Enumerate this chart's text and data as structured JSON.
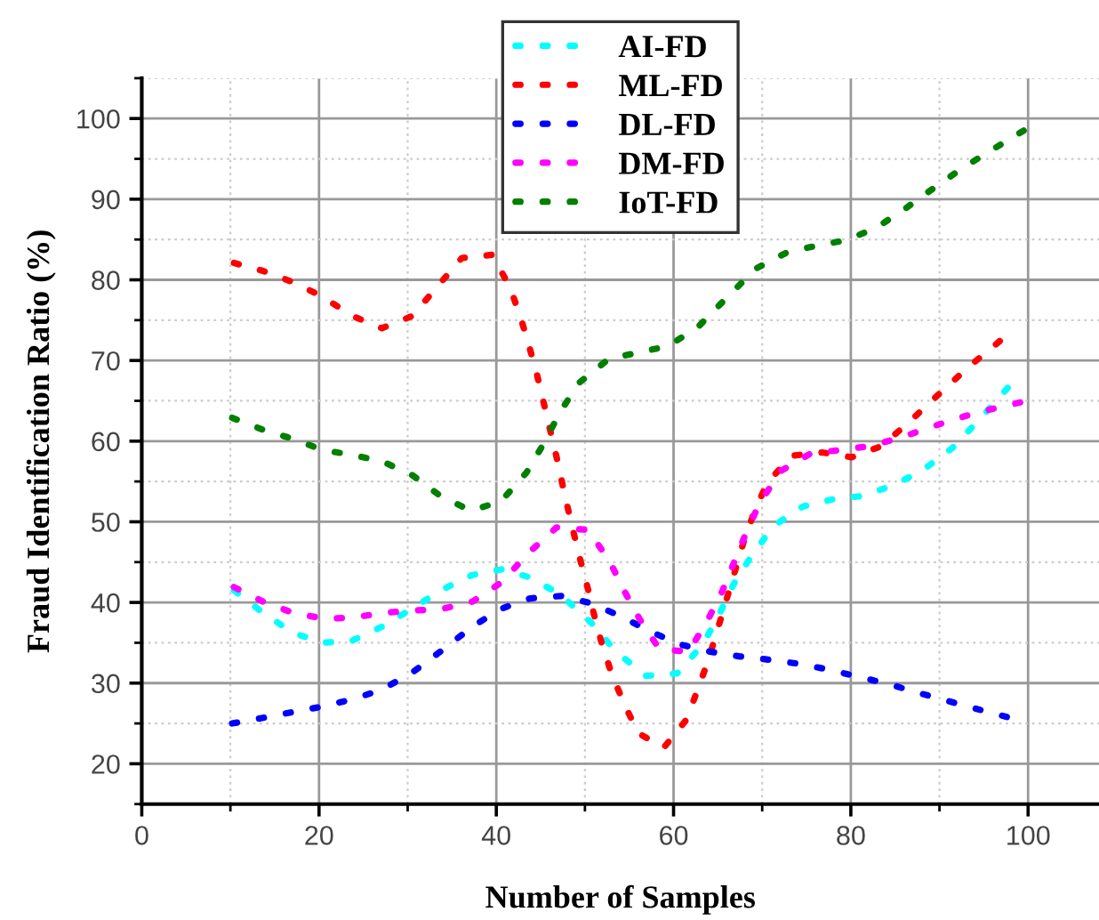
{
  "chart_data": {
    "type": "line",
    "xlabel": "Number of Samples",
    "ylabel": "Fraud Identification Ratio (%)",
    "xlim": [
      0,
      108
    ],
    "xticks": [
      0,
      20,
      40,
      60,
      80,
      100
    ],
    "ylim": [
      15,
      105
    ],
    "yticks": [
      20,
      30,
      40,
      50,
      60,
      70,
      80,
      90,
      100
    ],
    "grid": true,
    "legend": "top",
    "line_style": "dotted",
    "marker": "none",
    "tick_labels": "xy",
    "series": [
      {
        "name": "AI-FD",
        "color": "#00ffff",
        "x": [
          10.4,
          13.7,
          17.1,
          20.5,
          23.8,
          27.1,
          30.6,
          33.9,
          37.3,
          40.6,
          43.8,
          47.2,
          50.7,
          53.5,
          56.9,
          60.4,
          63.3,
          65.1,
          66.8,
          68.8,
          71.3,
          74.6,
          78.0,
          81.3,
          84.7,
          88.0,
          91.5,
          94.7,
          97.7
        ],
        "values": [
          41.5,
          38.7,
          36.2,
          35.0,
          35.3,
          37.0,
          39.3,
          41.6,
          43.4,
          44.1,
          43.1,
          41.0,
          37.5,
          33.9,
          30.9,
          31.2,
          34.8,
          38.4,
          42.3,
          45.8,
          49.5,
          51.9,
          52.8,
          53.2,
          54.5,
          56.3,
          59.2,
          62.9,
          66.6
        ]
      },
      {
        "name": "ML-FD",
        "color": "#ff0000",
        "x": [
          10.4,
          13.7,
          17.1,
          20.4,
          23.8,
          27.1,
          30.5,
          33.3,
          36.1,
          39.5,
          41.5,
          42.7,
          43.7,
          44.6,
          45.4,
          46.2,
          47.0,
          47.7,
          48.5,
          49.3,
          50.2,
          51.0,
          51.9,
          53.0,
          54.4,
          56.0,
          58.9,
          61.4,
          62.7,
          63.9,
          64.9,
          65.9,
          66.9,
          67.9,
          69.1,
          70.6,
          73.4,
          76.8,
          80.1,
          83.5,
          86.8,
          90.2,
          93.5,
          96.8
        ],
        "values": [
          82.1,
          81.1,
          79.7,
          77.9,
          75.5,
          74.0,
          75.5,
          79.1,
          82.7,
          83.1,
          79.2,
          75.5,
          71.8,
          68.2,
          64.5,
          60.8,
          57.1,
          53.4,
          49.7,
          46.0,
          42.3,
          38.6,
          34.9,
          31.2,
          27.5,
          23.8,
          22.0,
          25.4,
          29.1,
          32.8,
          36.4,
          40.1,
          43.8,
          47.5,
          51.2,
          54.9,
          58.2,
          58.6,
          58.0,
          59.4,
          62.6,
          66.1,
          69.4,
          72.4
        ]
      },
      {
        "name": "DL-FD",
        "color": "#0000ff",
        "x": [
          10.2,
          13.7,
          17.0,
          20.4,
          23.8,
          27.1,
          30.5,
          33.8,
          37.3,
          40.5,
          43.8,
          47.3,
          50.7,
          54.0,
          57.4,
          60.7,
          64.1,
          67.5,
          70.8,
          74.1,
          77.4,
          80.8,
          84.2,
          87.6,
          90.9,
          94.2,
          97.6
        ],
        "values": [
          25.0,
          25.7,
          26.4,
          27.1,
          28.0,
          29.2,
          31.3,
          34.0,
          37.0,
          39.2,
          40.5,
          40.8,
          39.9,
          38.3,
          36.4,
          34.8,
          33.9,
          33.3,
          32.9,
          32.4,
          31.7,
          30.8,
          29.9,
          28.8,
          27.8,
          26.8,
          25.8
        ]
      },
      {
        "name": "DM-FD",
        "color": "#ff00ff",
        "x": [
          10.4,
          13.7,
          17.1,
          20.5,
          23.8,
          27.1,
          30.6,
          33.9,
          37.3,
          40.6,
          43.6,
          46.8,
          50.3,
          52.7,
          54.4,
          56.2,
          58.4,
          61.7,
          63.8,
          65.5,
          66.8,
          68.1,
          69.7,
          72.1,
          75.5,
          78.9,
          82.2,
          85.5,
          88.9,
          92.2,
          95.6,
          99.1
        ],
        "values": [
          41.9,
          40.1,
          38.7,
          38.0,
          38.1,
          38.7,
          39.0,
          39.2,
          40.1,
          42.5,
          46.1,
          49.3,
          49.0,
          45.3,
          41.5,
          37.9,
          34.2,
          33.9,
          37.7,
          41.4,
          44.9,
          48.4,
          52.3,
          56.3,
          58.5,
          58.9,
          59.4,
          60.4,
          61.7,
          62.9,
          63.9,
          64.8
        ]
      },
      {
        "name": "IoT-FD",
        "color": "#008000",
        "x": [
          10.2,
          13.7,
          17.0,
          20.4,
          23.7,
          27.1,
          30.5,
          33.7,
          37.1,
          40.5,
          43.4,
          45.3,
          47.2,
          49.3,
          52.7,
          56.1,
          59.4,
          62.8,
          66.1,
          69.3,
          72.8,
          76.0,
          79.4,
          82.8,
          86.1,
          89.5,
          92.8,
          96.2,
          99.5
        ],
        "values": [
          62.9,
          61.4,
          60.3,
          58.9,
          58.3,
          57.5,
          55.8,
          53.2,
          51.4,
          52.5,
          56.1,
          59.6,
          63.6,
          67.2,
          70.2,
          71.0,
          71.8,
          74.2,
          77.9,
          81.4,
          83.4,
          84.2,
          84.9,
          86.4,
          88.8,
          91.5,
          94.0,
          96.3,
          98.5
        ]
      }
    ]
  }
}
